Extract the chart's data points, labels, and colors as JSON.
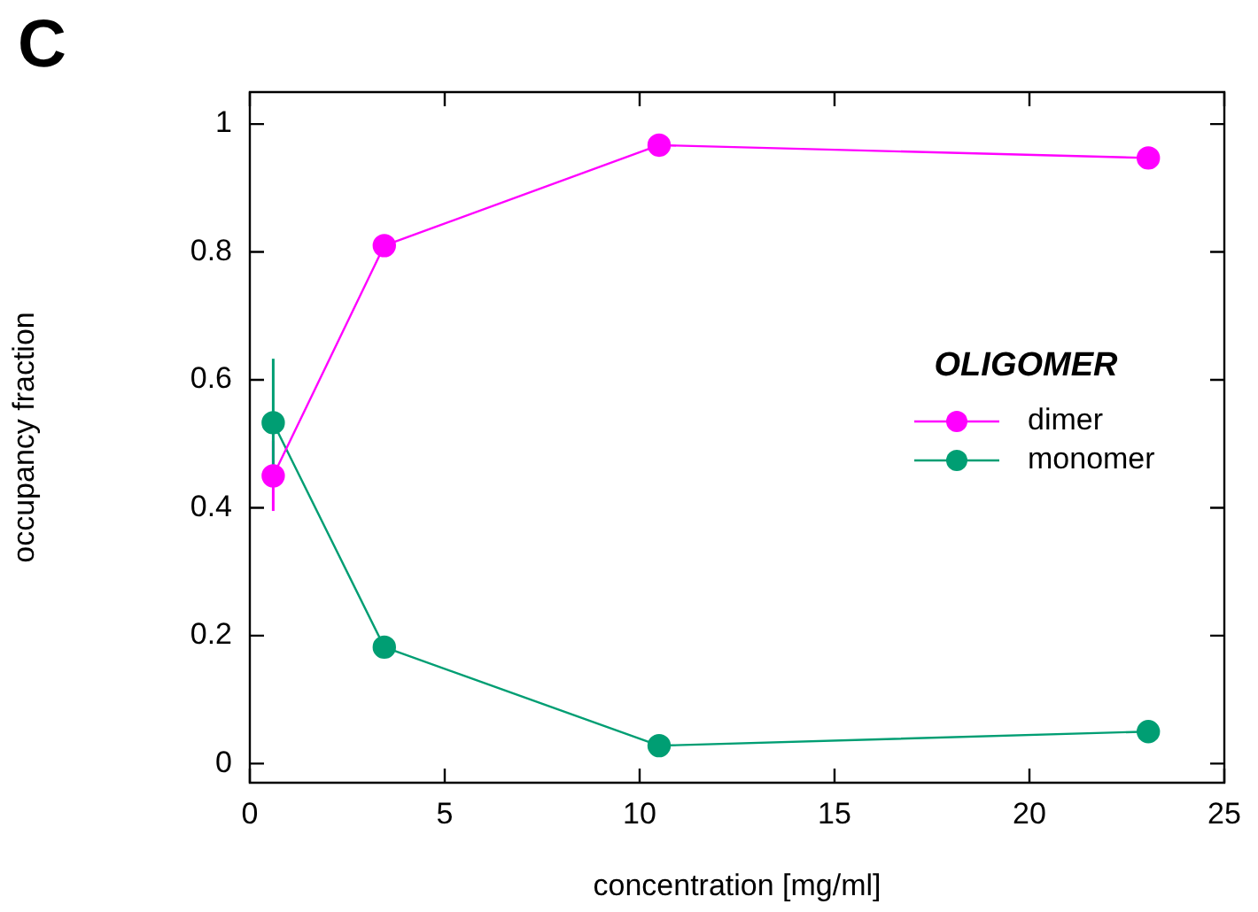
{
  "chart_data": {
    "type": "line",
    "xlabel": "concentration [mg/ml]",
    "ylabel": "occupancy fraction",
    "legend_title": "OLIGOMER",
    "annotations": [
      "C"
    ],
    "x": [
      0.6,
      3.45,
      10.5,
      23.05
    ],
    "series": [
      {
        "name": "dimer",
        "color": "#ff00ff",
        "values": [
          0.45,
          0.81,
          0.967,
          0.947
        ],
        "errors": [
          0.055,
          null,
          null,
          null
        ]
      },
      {
        "name": "monomer",
        "color": "#009e73",
        "values": [
          0.533,
          0.182,
          0.028,
          0.05
        ],
        "errors": [
          0.1,
          null,
          null,
          null
        ]
      }
    ],
    "xlim": [
      0,
      25
    ],
    "xticks": [
      0,
      5,
      10,
      15,
      20,
      25
    ],
    "ylim": [
      -0.03,
      1.05
    ],
    "yticks": [
      0,
      0.2,
      0.4,
      0.6,
      0.8,
      1
    ],
    "legend": "right",
    "marker": "circle",
    "line_style": "solid",
    "grid": false
  }
}
